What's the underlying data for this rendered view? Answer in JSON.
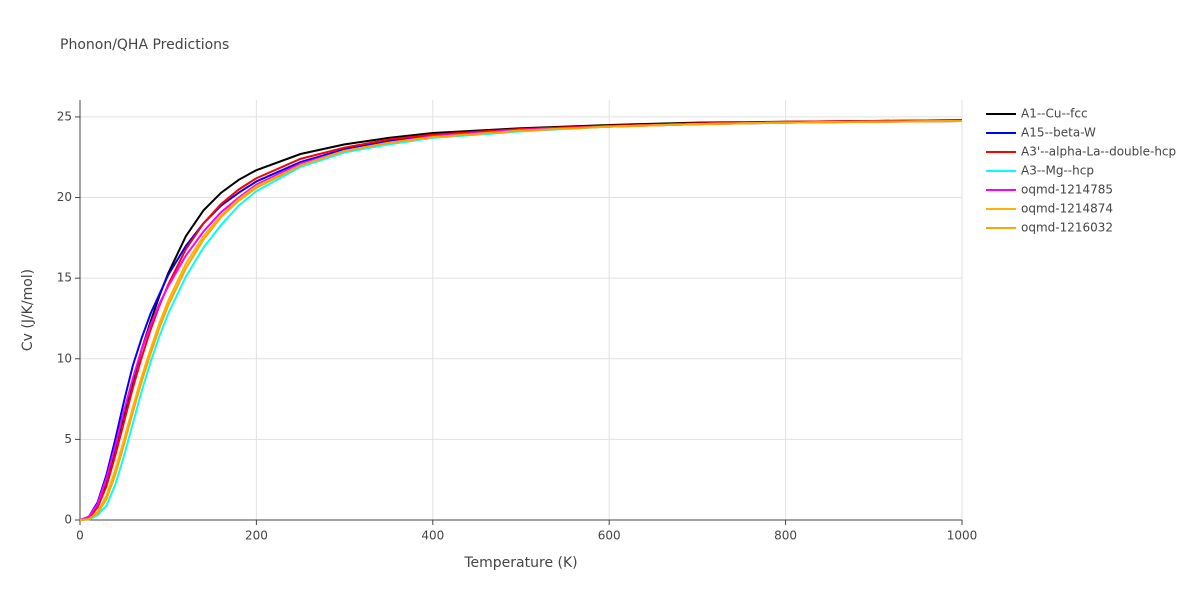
{
  "chart_data": {
    "type": "line",
    "title": "Phonon/QHA Predictions",
    "x_label": "Temperature (K)",
    "y_label": "Cv (J/K/mol)",
    "x": [
      0,
      10,
      20,
      30,
      40,
      50,
      60,
      70,
      80,
      90,
      100,
      120,
      140,
      160,
      180,
      200,
      250,
      300,
      350,
      400,
      500,
      600,
      700,
      800,
      900,
      1000
    ],
    "xlim": [
      0,
      1000
    ],
    "xticks": [
      0,
      200,
      400,
      600,
      800,
      1000
    ],
    "ylim": [
      0,
      26.05
    ],
    "yticks": [
      0,
      5,
      10,
      15,
      20,
      25
    ],
    "grid": true,
    "legend": "right",
    "series": [
      {
        "name": "A1--Cu--fcc",
        "color": "#000000",
        "values": [
          0,
          0.1,
          0.8,
          2.2,
          4.2,
          6.4,
          8.6,
          10.6,
          12.3,
          13.9,
          15.3,
          17.6,
          19.2,
          20.3,
          21.1,
          21.7,
          22.7,
          23.3,
          23.7,
          24.0,
          24.3,
          24.5,
          24.65,
          24.7,
          24.75,
          24.8
        ]
      },
      {
        "name": "A15--beta-W",
        "color": "#0000ff",
        "values": [
          0,
          0.2,
          1.1,
          2.8,
          5.0,
          7.4,
          9.6,
          11.3,
          12.8,
          14.0,
          15.2,
          17.0,
          18.4,
          19.5,
          20.3,
          21.0,
          22.2,
          23.0,
          23.5,
          23.8,
          24.2,
          24.4,
          24.55,
          24.65,
          24.7,
          24.75
        ]
      },
      {
        "name": "A3'--alpha-La--double-hcp",
        "color": "#ff0000",
        "values": [
          0,
          0.1,
          0.8,
          2.1,
          4.0,
          6.1,
          8.2,
          10.1,
          11.8,
          13.3,
          14.6,
          16.8,
          18.4,
          19.6,
          20.5,
          21.2,
          22.4,
          23.1,
          23.6,
          23.9,
          24.25,
          24.45,
          24.6,
          24.7,
          24.75,
          24.8
        ]
      },
      {
        "name": "A3--Mg--hcp",
        "color": "#00ffff",
        "values": [
          0,
          0.02,
          0.3,
          0.9,
          2.2,
          4.0,
          6.0,
          8.0,
          9.8,
          11.4,
          12.8,
          15.1,
          16.9,
          18.3,
          19.5,
          20.4,
          21.9,
          22.8,
          23.3,
          23.7,
          24.1,
          24.4,
          24.55,
          24.65,
          24.7,
          24.75
        ]
      },
      {
        "name": "oqmd-1214785",
        "color": "#ff00ff",
        "values": [
          0,
          0.2,
          1.0,
          2.6,
          4.6,
          6.8,
          8.8,
          10.6,
          12.1,
          13.4,
          14.5,
          16.4,
          17.9,
          19.1,
          20.0,
          20.8,
          22.1,
          22.9,
          23.4,
          23.8,
          24.2,
          24.4,
          24.55,
          24.65,
          24.7,
          24.75
        ]
      },
      {
        "name": "oqmd-1214874",
        "color": "#ffb300",
        "values": [
          0,
          0.05,
          0.5,
          1.5,
          3.1,
          5.0,
          7.0,
          8.9,
          10.6,
          12.2,
          13.6,
          15.9,
          17.6,
          18.9,
          19.9,
          20.7,
          22.0,
          22.9,
          23.4,
          23.75,
          24.15,
          24.4,
          24.55,
          24.65,
          24.7,
          24.75
        ]
      },
      {
        "name": "oqmd-1216032",
        "color": "#ffa500",
        "values": [
          0,
          0.05,
          0.4,
          1.3,
          2.8,
          4.7,
          6.7,
          8.6,
          10.3,
          11.9,
          13.3,
          15.6,
          17.4,
          18.8,
          19.8,
          20.6,
          22.0,
          22.9,
          23.4,
          23.75,
          24.15,
          24.4,
          24.55,
          24.65,
          24.7,
          24.75
        ]
      }
    ]
  }
}
